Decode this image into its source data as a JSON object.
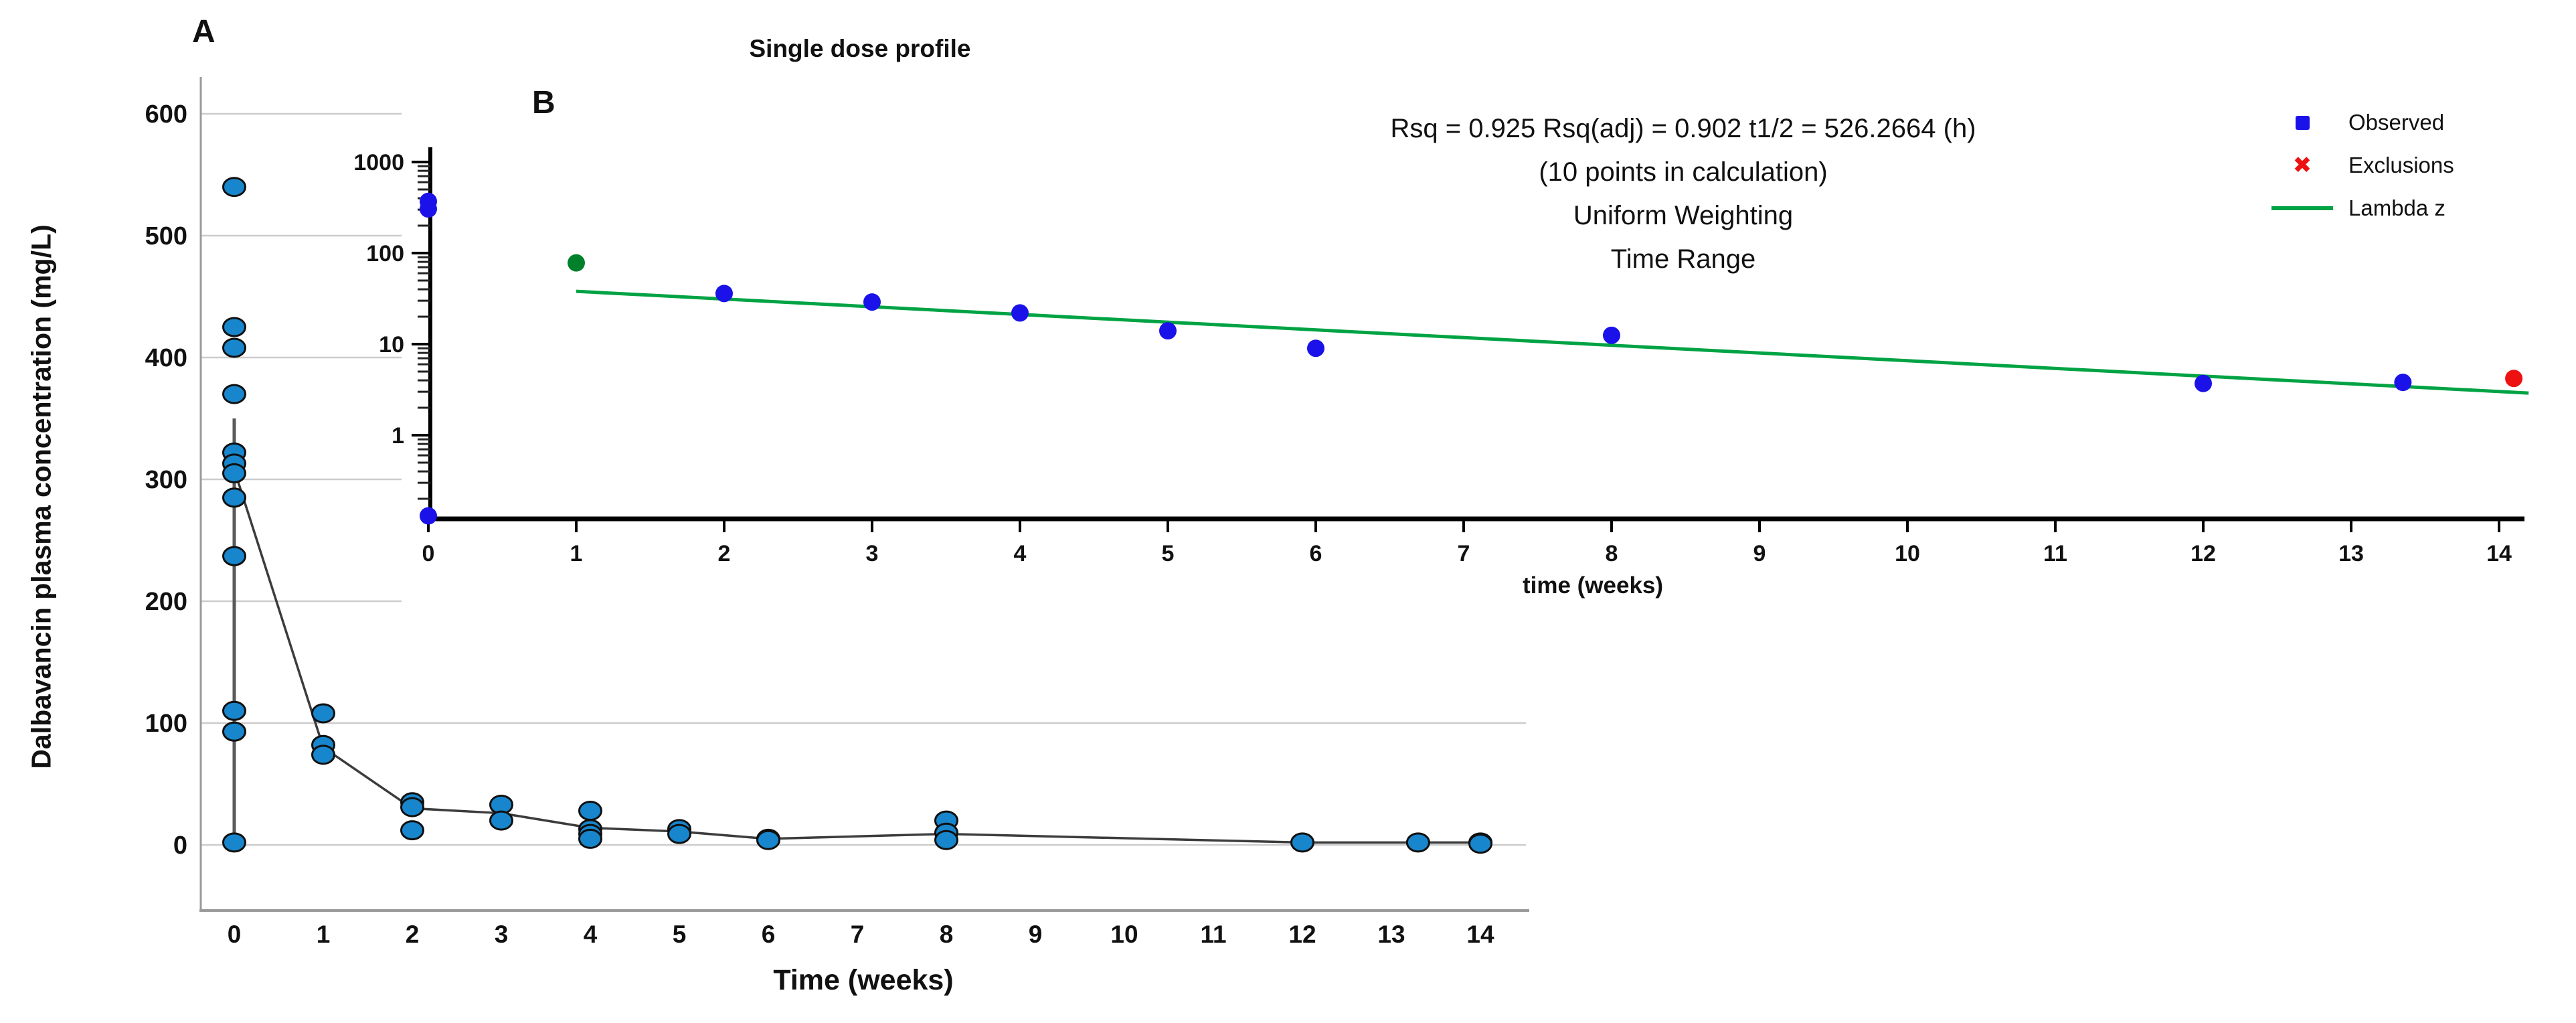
{
  "page": {
    "background": "#ffffff"
  },
  "chart_data": [
    {
      "type": "scatter",
      "panel": "A",
      "title": "",
      "xlabel": "Time (weeks)",
      "ylabel": "Dalbavancin plasma concentration (mg/L)",
      "x_ticks": [
        0,
        1,
        2,
        3,
        4,
        5,
        6,
        7,
        8,
        9,
        10,
        11,
        12,
        13,
        14
      ],
      "y_ticks": [
        600,
        500,
        400,
        300,
        200,
        100,
        0
      ],
      "xlim": [
        -0.4,
        14.6
      ],
      "ylim": [
        -55,
        660
      ],
      "grid": "horizontal-light",
      "grid_color": "#cccccc",
      "axis_color": "#9a9a9a",
      "trend_line_color": "#3c3c3c",
      "marker": {
        "shape": "circle",
        "fill": "#1886cc",
        "stroke": "#101010"
      },
      "points": [
        {
          "x": 0,
          "y": [
            540,
            425,
            408,
            370,
            322,
            313,
            305,
            285,
            237,
            110,
            93,
            2
          ]
        },
        {
          "x": 1,
          "y": [
            108,
            82,
            74
          ]
        },
        {
          "x": 2,
          "y": [
            35,
            31,
            12
          ]
        },
        {
          "x": 3,
          "y": [
            33,
            20
          ]
        },
        {
          "x": 4,
          "y": [
            28,
            13,
            9,
            5
          ]
        },
        {
          "x": 5,
          "y": [
            13,
            9
          ]
        },
        {
          "x": 6,
          "y": [
            5,
            4
          ]
        },
        {
          "x": 8,
          "y": [
            20,
            10,
            4
          ]
        },
        {
          "x": 12,
          "y": [
            2
          ]
        },
        {
          "x": 13.3,
          "y": [
            2
          ]
        },
        {
          "x": 14,
          "y": [
            2,
            1
          ]
        }
      ],
      "mean_line": [
        [
          0,
          308
        ],
        [
          1,
          80
        ],
        [
          2,
          30
        ],
        [
          3,
          26
        ],
        [
          4,
          14
        ],
        [
          5,
          11
        ],
        [
          6,
          5
        ],
        [
          8,
          9
        ],
        [
          12,
          2
        ],
        [
          13.3,
          2
        ],
        [
          14,
          2
        ]
      ],
      "range_bar": {
        "x": 0,
        "y_min": 10,
        "y_max": 350
      }
    },
    {
      "type": "scatter",
      "panel": "B",
      "title": "Single dose profile",
      "xlabel": "time (weeks)",
      "ylabel": "",
      "y_scale": "log",
      "x_ticks": [
        0,
        1,
        2,
        3,
        4,
        5,
        6,
        7,
        8,
        9,
        10,
        11,
        12,
        13,
        14
      ],
      "y_ticks": [
        1000,
        100,
        10,
        1
      ],
      "ylim": [
        0.13,
        1400
      ],
      "axis_color": "#000000",
      "stats_lines": [
        "Rsq = 0.925 Rsq(adj) = 0.902 t1/2 = 526.2664 (h)",
        "(10 points in calculation)",
        "Uniform Weighting",
        "Time Range"
      ],
      "series": [
        {
          "name": "Observed",
          "marker": "circle",
          "color": "#1a12e8",
          "points": [
            [
              0,
              370
            ],
            [
              0,
              305
            ],
            [
              0,
              0.13
            ],
            [
              2,
              36
            ],
            [
              3,
              29
            ],
            [
              4,
              22
            ],
            [
              5,
              14
            ],
            [
              6,
              9
            ],
            [
              8,
              12.5
            ],
            [
              12,
              3.7
            ],
            [
              13.35,
              3.8
            ]
          ]
        },
        {
          "name": "Lambda z start",
          "marker": "circle",
          "color": "#00802b",
          "points": [
            [
              1,
              78
            ]
          ]
        },
        {
          "name": "Exclusions",
          "marker": "circle",
          "color": "#ee1111",
          "points": [
            [
              14.1,
              4.2
            ]
          ]
        }
      ],
      "lambda_z_line": {
        "color": "#00a344",
        "x1": 1,
        "y1": 38,
        "x2": 14.2,
        "y2": 2.9
      },
      "legend": [
        {
          "label": "Observed",
          "marker": "square",
          "color": "#1a12e8"
        },
        {
          "label": "Exclusions",
          "marker": "cross",
          "color": "#ee1111"
        },
        {
          "label": "Lambda z",
          "marker": "line",
          "color": "#00a344"
        }
      ]
    }
  ]
}
